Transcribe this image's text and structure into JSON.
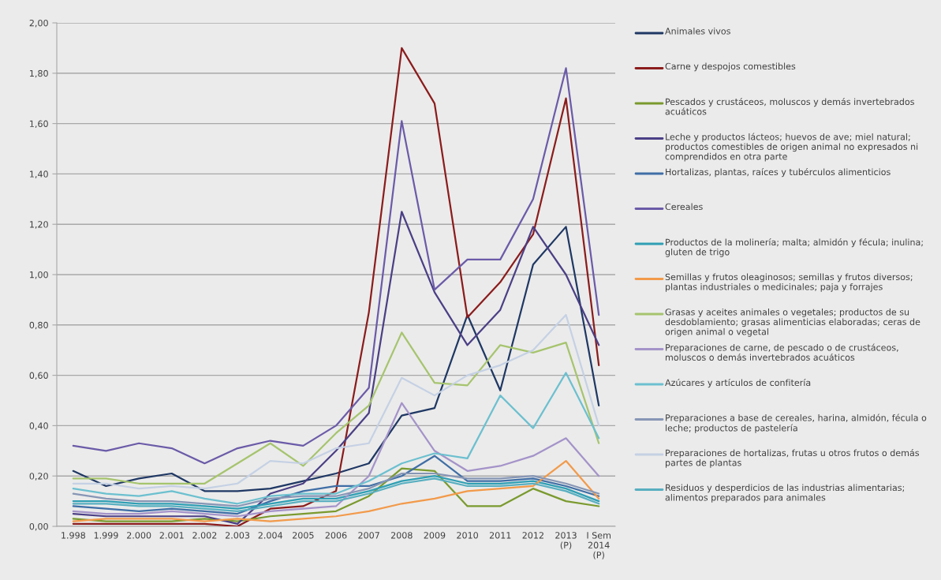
{
  "chart_data": {
    "type": "line",
    "categories": [
      "1.998",
      "1.999",
      "2.000",
      "2.001",
      "2.002",
      "2.003",
      "2.004",
      "2005",
      "2006",
      "2007",
      "2008",
      "2009",
      "2010",
      "2011",
      "2012",
      "2013\n(P)",
      "I Sem\n2014\n(P)"
    ],
    "ylim": [
      0,
      2
    ],
    "yticks": [
      {
        "value": 0,
        "label": "0,00"
      },
      {
        "value": 0.2,
        "label": "0,20"
      },
      {
        "value": 0.4,
        "label": "0,40"
      },
      {
        "value": 0.6,
        "label": "0,60"
      },
      {
        "value": 0.8,
        "label": "0,80"
      },
      {
        "value": 1.0,
        "label": "1,00"
      },
      {
        "value": 1.2,
        "label": "1,20"
      },
      {
        "value": 1.4,
        "label": "1,40"
      },
      {
        "value": 1.6,
        "label": "1,60"
      },
      {
        "value": 1.8,
        "label": "1,80"
      },
      {
        "value": 2.0,
        "label": "2,00"
      }
    ],
    "grid": "y",
    "legend": "right",
    "series": [
      {
        "name": "Animales vivos",
        "color": "#1f3864",
        "values": [
          0.22,
          0.16,
          0.19,
          0.21,
          0.14,
          0.14,
          0.15,
          0.18,
          0.21,
          0.25,
          0.44,
          0.47,
          0.84,
          0.54,
          1.04,
          1.19,
          0.48
        ]
      },
      {
        "name": "Carne y despojos comestibles",
        "color": "#8b1c1c",
        "values": [
          0.01,
          0.01,
          0.01,
          0.01,
          0.01,
          0.0,
          0.07,
          0.08,
          0.14,
          0.85,
          1.9,
          1.68,
          0.83,
          0.97,
          1.16,
          1.7,
          0.64
        ]
      },
      {
        "name": "Pescados y crustáceos, moluscos y demás invertebrados acuáticos",
        "color": "#7a9a2e",
        "values": [
          0.03,
          0.02,
          0.02,
          0.02,
          0.03,
          0.02,
          0.04,
          0.05,
          0.06,
          0.12,
          0.23,
          0.22,
          0.08,
          0.08,
          0.15,
          0.1,
          0.08
        ]
      },
      {
        "name": "Leche y productos lácteos; huevos de ave; miel natural; productos comestibles de origen animal no expresados ni comprendidos en otra parte",
        "color": "#4b3f85",
        "values": [
          0.05,
          0.04,
          0.04,
          0.04,
          0.04,
          0.01,
          0.13,
          0.17,
          0.3,
          0.45,
          1.25,
          0.93,
          0.72,
          0.86,
          1.19,
          1.0,
          0.72
        ]
      },
      {
        "name": "Hortalizas, plantas, raíces y tubérculos alimenticios",
        "color": "#3f6ea6",
        "values": [
          0.08,
          0.07,
          0.06,
          0.07,
          0.06,
          0.05,
          0.1,
          0.14,
          0.16,
          0.16,
          0.2,
          0.28,
          0.18,
          0.18,
          0.19,
          0.16,
          0.12
        ]
      },
      {
        "name": "Cereales",
        "color": "#6b5ba8",
        "values": [
          0.32,
          0.3,
          0.33,
          0.31,
          0.25,
          0.31,
          0.34,
          0.32,
          0.4,
          0.55,
          1.61,
          0.94,
          1.06,
          1.06,
          1.3,
          1.82,
          0.84
        ]
      },
      {
        "name": "Productos de la molinería; malta; almidón y fécula; inulina; gluten de trigo",
        "color": "#2f9fb4",
        "values": [
          0.1,
          0.1,
          0.09,
          0.09,
          0.08,
          0.07,
          0.09,
          0.11,
          0.11,
          0.14,
          0.18,
          0.2,
          0.17,
          0.17,
          0.18,
          0.15,
          0.1
        ]
      },
      {
        "name": "Semillas y frutos oleaginosos; semillas y frutos diversos; plantas industriales o medicinales; paja y forrajes",
        "color": "#f29a4a",
        "values": [
          0.02,
          0.03,
          0.03,
          0.03,
          0.02,
          0.03,
          0.02,
          0.03,
          0.04,
          0.06,
          0.09,
          0.11,
          0.14,
          0.15,
          0.16,
          0.26,
          0.11
        ]
      },
      {
        "name": "Grasas y aceites animales o vegetales; productos de su desdoblamiento; grasas alimenticias elaboradas; ceras de origen animal o vegetal",
        "color": "#a6c46e",
        "values": [
          0.19,
          0.19,
          0.17,
          0.17,
          0.17,
          0.25,
          0.33,
          0.24,
          0.37,
          0.48,
          0.77,
          0.57,
          0.56,
          0.72,
          0.69,
          0.73,
          0.33
        ]
      },
      {
        "name": "Preparaciones de carne, de pescado o de crustáceos, moluscos o demás invertebrados acuáticos",
        "color": "#a493c9",
        "values": [
          0.06,
          0.05,
          0.05,
          0.06,
          0.05,
          0.04,
          0.06,
          0.07,
          0.08,
          0.2,
          0.49,
          0.3,
          0.22,
          0.24,
          0.28,
          0.35,
          0.2
        ]
      },
      {
        "name": "Azúcares y artículos de confitería",
        "color": "#6cc0cf",
        "values": [
          0.15,
          0.13,
          0.12,
          0.14,
          0.11,
          0.09,
          0.12,
          0.13,
          0.13,
          0.18,
          0.25,
          0.29,
          0.27,
          0.52,
          0.39,
          0.61,
          0.35
        ]
      },
      {
        "name": "Preparaciones a base de cereales, harina, almidón, fécula o leche; productos de pastelería",
        "color": "#8796b5",
        "values": [
          0.13,
          0.11,
          0.1,
          0.1,
          0.09,
          0.08,
          0.11,
          0.12,
          0.12,
          0.15,
          0.21,
          0.21,
          0.19,
          0.19,
          0.2,
          0.17,
          0.13
        ]
      },
      {
        "name": "Preparaciones de hortalizas, frutas u otros frutos o demás partes de plantas",
        "color": "#c5d1e4",
        "values": [
          0.17,
          0.17,
          0.15,
          0.16,
          0.15,
          0.17,
          0.26,
          0.25,
          0.31,
          0.33,
          0.59,
          0.52,
          0.6,
          0.64,
          0.7,
          0.84,
          0.4
        ]
      },
      {
        "name": "Residuos y desperdicios de las industrias alimentarias; alimentos preparados para animales",
        "color": "#58afc0",
        "values": [
          0.09,
          0.09,
          0.08,
          0.08,
          0.07,
          0.06,
          0.08,
          0.1,
          0.1,
          0.13,
          0.17,
          0.19,
          0.16,
          0.16,
          0.17,
          0.14,
          0.09
        ]
      }
    ]
  }
}
